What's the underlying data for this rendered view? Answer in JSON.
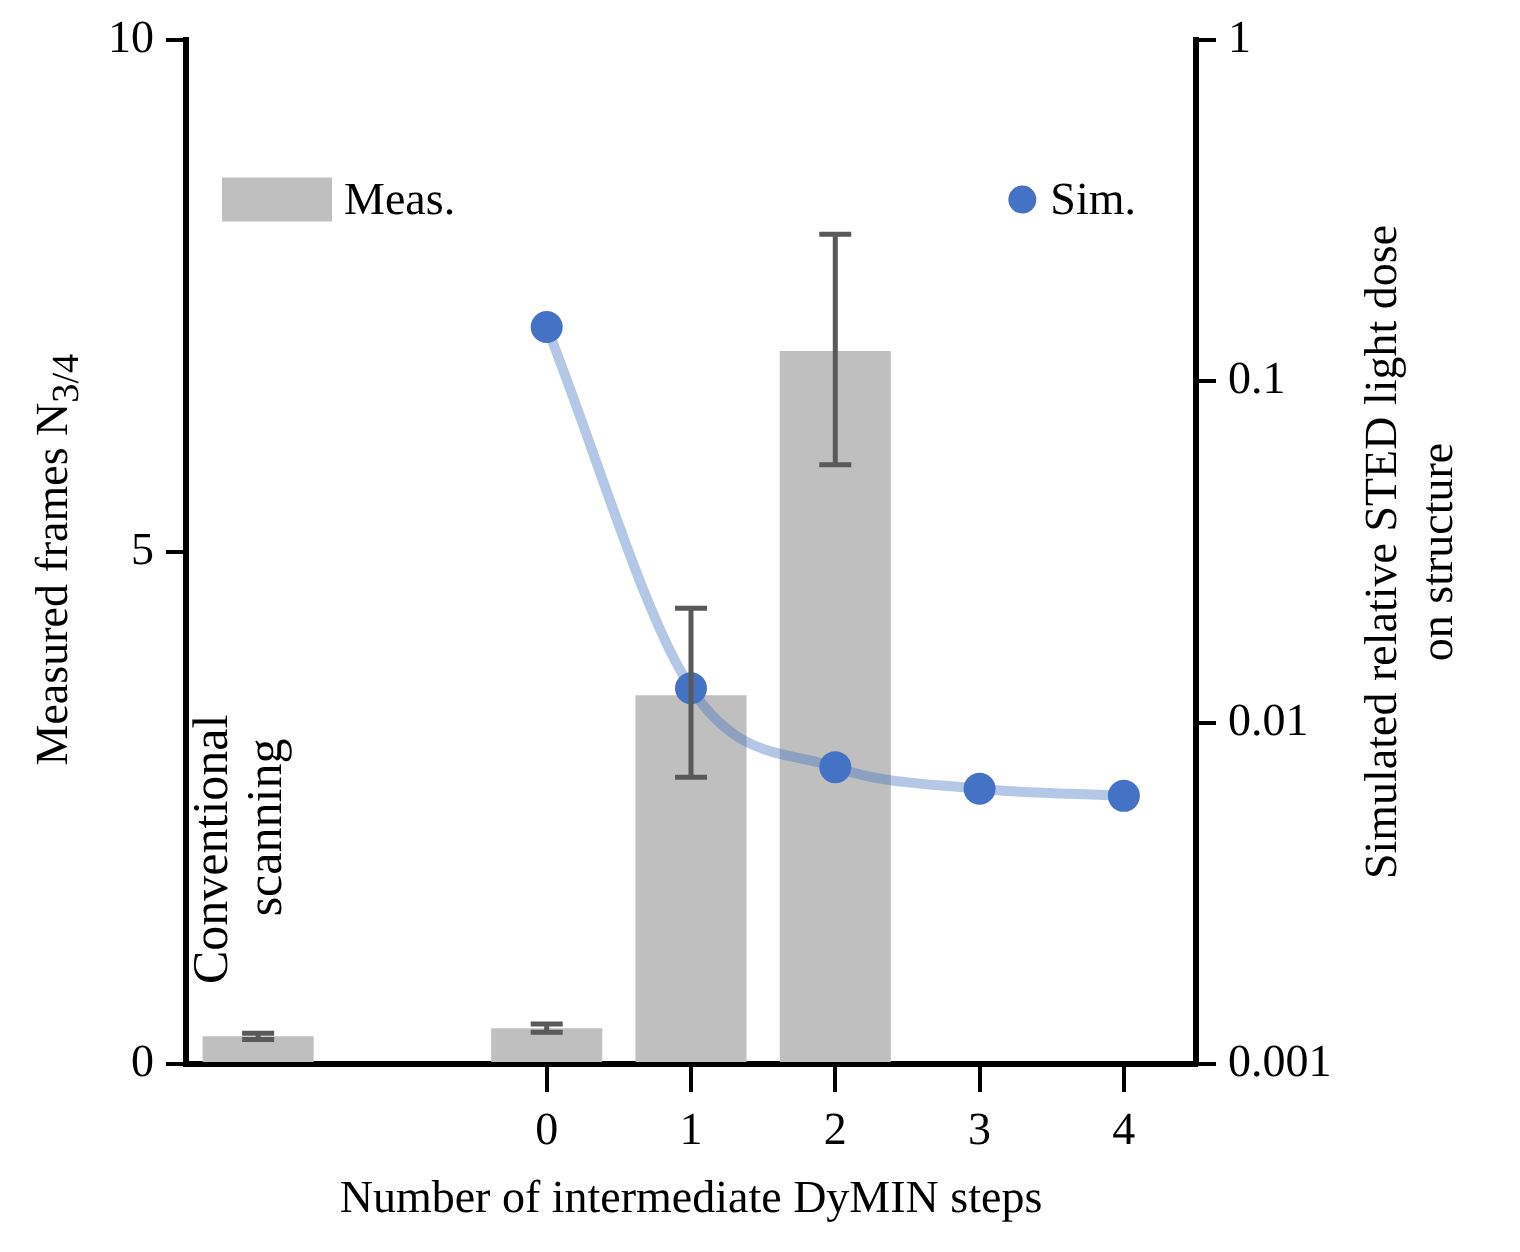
{
  "chart_data": {
    "type": "bar",
    "categories": [
      null,
      null,
      "0",
      "1",
      "2",
      "3",
      "4"
    ],
    "xlabel": "Number of intermediate DyMIN steps",
    "ylabel": "Measured frames N$_{3/4}$",
    "y2label": "Simulated relative STED light dose on structure",
    "ylim": [
      0,
      10
    ],
    "yticks": [
      0,
      5,
      10
    ],
    "y2lim": [
      0.001,
      1
    ],
    "y2ticks": [
      0.001,
      0.01,
      0.1,
      1
    ],
    "log": "y2",
    "legend": "top",
    "series": [
      {
        "name": "Meas.",
        "color": "#bfbfbf",
        "values": [
          0.27,
          null,
          0.35,
          3.6,
          6.96,
          null,
          null
        ],
        "errors": [
          0.03,
          null,
          0.04,
          [
            2.8,
            4.45
          ],
          [
            5.85,
            8.1
          ],
          null,
          null
        ]
      },
      {
        "name": "Sim.",
        "type": "line",
        "axis": "y2",
        "marker": "circle",
        "color": "#4472c4",
        "values": [
          null,
          null,
          0.144,
          0.0126,
          0.0074,
          0.0064,
          0.0061
        ]
      }
    ],
    "annotations": [
      "Conventional scanning"
    ]
  }
}
